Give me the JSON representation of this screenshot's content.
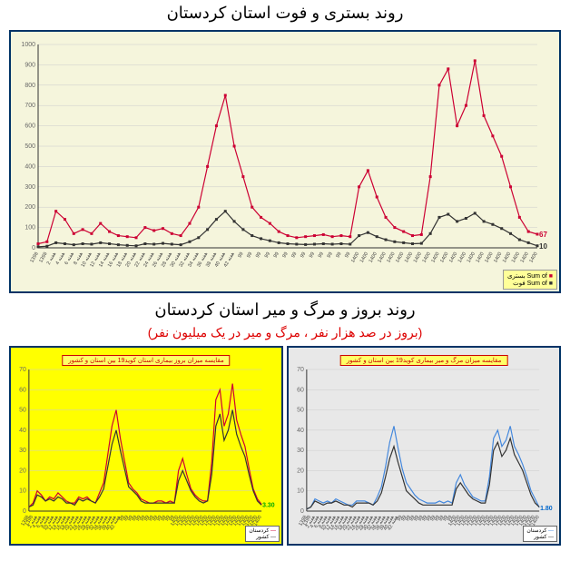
{
  "titles": {
    "top": "روند بستری و فوت استان کردستان",
    "bottom_main": "روند بروز و مرگ و میر استان کردستان",
    "bottom_sub": "(بروز در صد هزار نفر ، مرگ و میر در یک میلیون نفر)"
  },
  "top_chart": {
    "type": "line",
    "background_color": "#f5f5dc",
    "plot_bg": "#ffffff",
    "border_color": "#003366",
    "ylim": [
      0,
      1000
    ],
    "ytick_step": 100,
    "grid_color": "#d0d0d0",
    "series": [
      {
        "name": "بستری",
        "legend": "Sum of بستری",
        "color": "#cc0033",
        "marker": "square",
        "end_value": 67,
        "values": [
          20,
          30,
          180,
          140,
          70,
          90,
          70,
          120,
          80,
          60,
          55,
          50,
          100,
          85,
          95,
          70,
          60,
          120,
          200,
          400,
          600,
          750,
          500,
          350,
          200,
          150,
          120,
          80,
          60,
          50,
          55,
          60,
          65,
          55,
          60,
          55,
          300,
          380,
          250,
          150,
          100,
          80,
          60,
          65,
          350,
          800,
          880,
          600,
          700,
          920,
          650,
          550,
          450,
          300,
          150,
          80,
          67
        ]
      },
      {
        "name": "فوت",
        "legend": "Sum of فوت",
        "color": "#333333",
        "marker": "square",
        "end_value": 10,
        "values": [
          5,
          8,
          25,
          20,
          15,
          20,
          18,
          25,
          20,
          15,
          12,
          10,
          20,
          18,
          22,
          18,
          15,
          30,
          50,
          90,
          140,
          180,
          130,
          90,
          60,
          45,
          35,
          25,
          20,
          18,
          16,
          18,
          20,
          18,
          20,
          18,
          60,
          75,
          55,
          40,
          30,
          25,
          20,
          22,
          70,
          150,
          165,
          130,
          145,
          170,
          130,
          115,
          95,
          70,
          40,
          25,
          10
        ]
      }
    ],
    "x_labels": [
      "1398",
      "1398",
      "هفته 2",
      "هفته 4",
      "هفته 6",
      "هفته 8",
      "هفته 10",
      "هفته 12",
      "هفته 14",
      "هفته 16",
      "هفته 18",
      "هفته 20",
      "هفته 22",
      "هفته 24",
      "هفته 26",
      "هفته 28",
      "هفته 30",
      "هفته 32",
      "هفته 34",
      "هفته 36",
      "هفته 38",
      "هفته 40",
      "هفته 42",
      "99",
      "99",
      "99",
      "99",
      "99",
      "99",
      "99",
      "99",
      "99",
      "99",
      "99",
      "99",
      "99",
      "1400",
      "1400",
      "1400",
      "1400",
      "1400",
      "1400",
      "1400",
      "1400",
      "1400",
      "1400",
      "1400",
      "1400",
      "1400",
      "1400",
      "1400",
      "1400",
      "1400",
      "1400",
      "1400",
      "1400",
      "1400"
    ]
  },
  "bottom_left_chart": {
    "type": "line",
    "background_color": "#ffff00",
    "plot_bg": "#ffff00",
    "title_box": "مقایسه میزان بروز بیماری استان کوید19 بین استان و کشور",
    "ylim": [
      0,
      70
    ],
    "ytick_step": 10,
    "end_value": 3.3,
    "end_color": "#00aa00",
    "series": [
      {
        "name": "کردستان",
        "color": "#cc0033",
        "values": [
          2,
          4,
          10,
          8,
          5,
          7,
          6,
          9,
          7,
          5,
          4,
          4,
          7,
          6,
          7,
          5,
          4,
          9,
          14,
          28,
          42,
          50,
          36,
          25,
          14,
          11,
          9,
          6,
          5,
          4,
          4,
          5,
          5,
          4,
          5,
          4,
          20,
          26,
          18,
          11,
          8,
          6,
          5,
          5,
          24,
          55,
          60,
          42,
          48,
          63,
          45,
          38,
          32,
          21,
          11,
          6,
          3.3
        ]
      },
      {
        "name": "کشور",
        "color": "#333333",
        "values": [
          2,
          3,
          8,
          7,
          5,
          6,
          5,
          7,
          6,
          4,
          4,
          3,
          6,
          5,
          6,
          5,
          4,
          7,
          11,
          22,
          33,
          40,
          30,
          21,
          12,
          10,
          8,
          5,
          4,
          4,
          4,
          4,
          4,
          4,
          4,
          4,
          15,
          20,
          15,
          10,
          7,
          5,
          4,
          5,
          18,
          42,
          48,
          35,
          40,
          50,
          38,
          32,
          27,
          18,
          10,
          5,
          3
        ]
      }
    ],
    "legend": [
      "کردستان",
      "کشور"
    ]
  },
  "bottom_right_chart": {
    "type": "line",
    "background_color": "#e8e8e8",
    "plot_bg": "#e8e8e8",
    "title_box": "مقایسه میزان مرگ و میر بیماری کوید19 بین استان و کشور",
    "ylim": [
      0,
      70
    ],
    "ytick_step": 10,
    "end_value": 1.8,
    "end_color": "#0066cc",
    "series": [
      {
        "name": "کردستان",
        "color": "#4488dd",
        "values": [
          1,
          2,
          6,
          5,
          4,
          5,
          4,
          6,
          5,
          4,
          3,
          3,
          5,
          5,
          5,
          4,
          3,
          7,
          12,
          22,
          34,
          42,
          31,
          21,
          14,
          11,
          8,
          6,
          5,
          4,
          4,
          4,
          5,
          4,
          5,
          4,
          14,
          18,
          13,
          10,
          7,
          6,
          5,
          5,
          17,
          36,
          40,
          32,
          35,
          42,
          32,
          28,
          23,
          17,
          10,
          6,
          1.8
        ]
      },
      {
        "name": "کشور",
        "color": "#333333",
        "values": [
          1,
          2,
          5,
          4,
          3,
          4,
          4,
          5,
          4,
          3,
          3,
          2,
          4,
          4,
          4,
          4,
          3,
          5,
          9,
          17,
          26,
          32,
          24,
          17,
          10,
          8,
          6,
          4,
          3,
          3,
          3,
          3,
          3,
          3,
          3,
          3,
          11,
          14,
          11,
          8,
          6,
          5,
          4,
          4,
          13,
          30,
          34,
          27,
          30,
          36,
          28,
          24,
          20,
          14,
          8,
          4,
          2
        ]
      }
    ],
    "legend": [
      "کردستان",
      "کشور"
    ]
  }
}
